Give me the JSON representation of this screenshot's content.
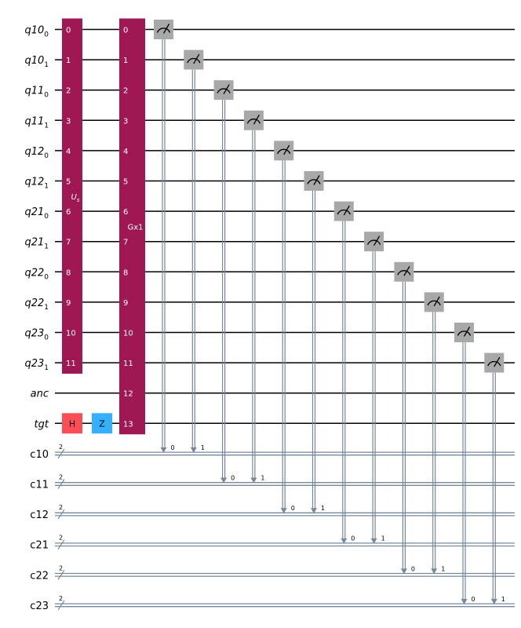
{
  "quantum_wires": [
    {
      "name": "q10",
      "sub": "0"
    },
    {
      "name": "q10",
      "sub": "1"
    },
    {
      "name": "q11",
      "sub": "0"
    },
    {
      "name": "q11",
      "sub": "1"
    },
    {
      "name": "q12",
      "sub": "0"
    },
    {
      "name": "q12",
      "sub": "1"
    },
    {
      "name": "q21",
      "sub": "0"
    },
    {
      "name": "q21",
      "sub": "1"
    },
    {
      "name": "q22",
      "sub": "0"
    },
    {
      "name": "q22",
      "sub": "1"
    },
    {
      "name": "q23",
      "sub": "0"
    },
    {
      "name": "q23",
      "sub": "1"
    },
    {
      "name": "anc",
      "sub": ""
    },
    {
      "name": "tgt",
      "sub": ""
    }
  ],
  "classical_wires": [
    {
      "name": "c10",
      "size": "2"
    },
    {
      "name": "c11",
      "size": "2"
    },
    {
      "name": "c12",
      "size": "2"
    },
    {
      "name": "c21",
      "size": "2"
    },
    {
      "name": "c22",
      "size": "2"
    },
    {
      "name": "c23",
      "size": "2"
    }
  ],
  "us_gate": {
    "label": "U",
    "sub": "s",
    "first": 0,
    "last": 11,
    "indices": [
      "0",
      "1",
      "2",
      "3",
      "4",
      "5",
      "6",
      "7",
      "8",
      "9",
      "10",
      "11"
    ]
  },
  "gx_gate": {
    "label": "Gx1",
    "first": 0,
    "last": 13,
    "indices": [
      "0",
      "1",
      "2",
      "3",
      "4",
      "5",
      "6",
      "7",
      "8",
      "9",
      "10",
      "11",
      "12",
      "13"
    ]
  },
  "single_gates": [
    {
      "label": "H",
      "wire": 13,
      "color": "#FA4D56"
    },
    {
      "label": "Z",
      "wire": 13,
      "color": "#33B1FF"
    }
  ],
  "measurements": [
    {
      "qubit": 0,
      "creg": 0,
      "bit": "0"
    },
    {
      "qubit": 1,
      "creg": 0,
      "bit": "1"
    },
    {
      "qubit": 2,
      "creg": 1,
      "bit": "0"
    },
    {
      "qubit": 3,
      "creg": 1,
      "bit": "1"
    },
    {
      "qubit": 4,
      "creg": 2,
      "bit": "0"
    },
    {
      "qubit": 5,
      "creg": 2,
      "bit": "1"
    },
    {
      "qubit": 6,
      "creg": 3,
      "bit": "0"
    },
    {
      "qubit": 7,
      "creg": 3,
      "bit": "1"
    },
    {
      "qubit": 8,
      "creg": 4,
      "bit": "0"
    },
    {
      "qubit": 9,
      "creg": 4,
      "bit": "1"
    },
    {
      "qubit": 10,
      "creg": 5,
      "bit": "0"
    },
    {
      "qubit": 11,
      "creg": 5,
      "bit": "1"
    }
  ],
  "colors": {
    "multi_gate": "#9F1853",
    "measure": "#A8A8A8",
    "classical": "#778899",
    "wire": "#000000"
  }
}
